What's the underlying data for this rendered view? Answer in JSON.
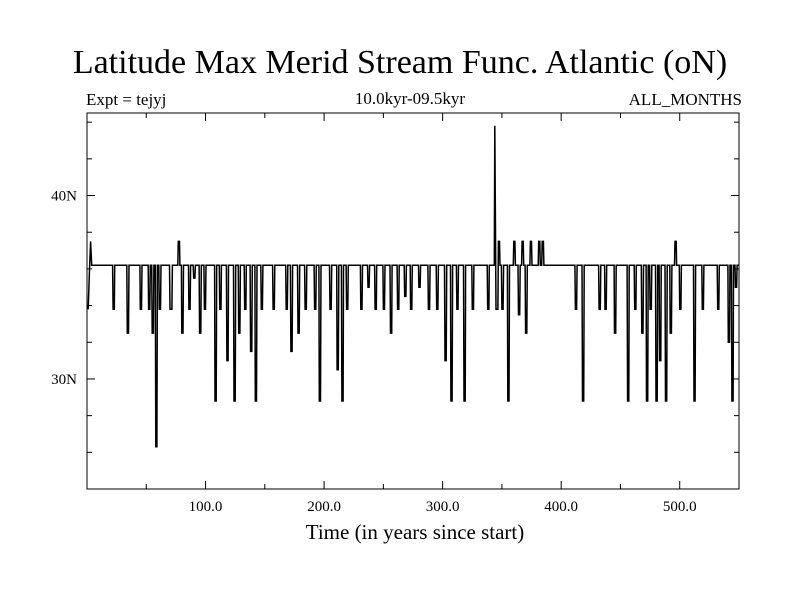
{
  "header": {
    "left_note": "Expt = tejyj",
    "center_note": "10.0kyr-09.5kyr",
    "right_note": "ALL_MONTHS"
  },
  "chart_data": {
    "type": "line",
    "title": "Latitude Max Merid Stream Func. Atlantic (oN)",
    "xlabel": "Time (in years since start)",
    "ylabel": "",
    "xlim": [
      0,
      550
    ],
    "ylim": [
      24,
      44.5
    ],
    "x_ticks": [
      100,
      200,
      300,
      400,
      500
    ],
    "x_tick_labels": [
      "100.0",
      "200.0",
      "300.0",
      "400.0",
      "500.0"
    ],
    "y_ticks": [
      30,
      40
    ],
    "y_tick_labels": [
      "30N",
      "40N"
    ],
    "series": [
      {
        "name": "latitude_max_streamfunction",
        "baseline": 36.2,
        "color": "#000000",
        "x": [
          1,
          2,
          3,
          4,
          5,
          8,
          14,
          22,
          28,
          34,
          38,
          45,
          48,
          52,
          55,
          58,
          61,
          66,
          70,
          72,
          75,
          77,
          80,
          86,
          90,
          95,
          99,
          103,
          108,
          112,
          118,
          124,
          128,
          133,
          138,
          142,
          147,
          150,
          157,
          162,
          168,
          172,
          178,
          184,
          188,
          192,
          196,
          200,
          205,
          211,
          215,
          219,
          225,
          231,
          237,
          243,
          250,
          256,
          262,
          268,
          273,
          280,
          288,
          295,
          302,
          307,
          312,
          318,
          325,
          332,
          338,
          344,
          345,
          347,
          350,
          355,
          360,
          364,
          367,
          370,
          374,
          378,
          381,
          384,
          399,
          412,
          418,
          425,
          432,
          437,
          445,
          450,
          456,
          462,
          468,
          472,
          475,
          480,
          483,
          488,
          492,
          496,
          500,
          508,
          512,
          519,
          526,
          532,
          538,
          541,
          544,
          547,
          550
        ],
        "values": [
          33.8,
          35.8,
          37.5,
          36.2,
          36.2,
          36.2,
          36.2,
          33.8,
          36.2,
          32.5,
          36.2,
          33.8,
          36.2,
          33.8,
          32.5,
          26.3,
          33.8,
          36.2,
          33.8,
          36.2,
          36.2,
          37.5,
          32.5,
          33.8,
          35.5,
          32.5,
          33.8,
          36.2,
          28.8,
          33.8,
          31.0,
          28.8,
          32.5,
          33.8,
          31.5,
          28.8,
          33.8,
          36.2,
          33.8,
          36.2,
          33.8,
          31.5,
          32.5,
          33.8,
          36.2,
          33.8,
          28.8,
          36.2,
          33.8,
          30.5,
          28.8,
          33.8,
          36.2,
          33.8,
          35.0,
          33.8,
          33.8,
          32.5,
          33.8,
          34.5,
          33.8,
          35.0,
          33.8,
          33.8,
          31.0,
          28.8,
          33.8,
          28.8,
          33.8,
          36.2,
          33.8,
          43.8,
          33.8,
          37.5,
          33.8,
          28.8,
          37.5,
          33.5,
          37.5,
          32.5,
          37.5,
          36.2,
          37.5,
          37.5,
          36.2,
          33.8,
          28.8,
          36.2,
          33.8,
          33.8,
          32.5,
          36.2,
          28.8,
          33.8,
          32.5,
          28.8,
          33.8,
          28.8,
          31.0,
          28.8,
          32.5,
          37.5,
          33.8,
          36.2,
          28.8,
          33.8,
          36.2,
          33.8,
          36.2,
          32.0,
          28.8,
          35.0,
          36.2
        ]
      }
    ]
  }
}
